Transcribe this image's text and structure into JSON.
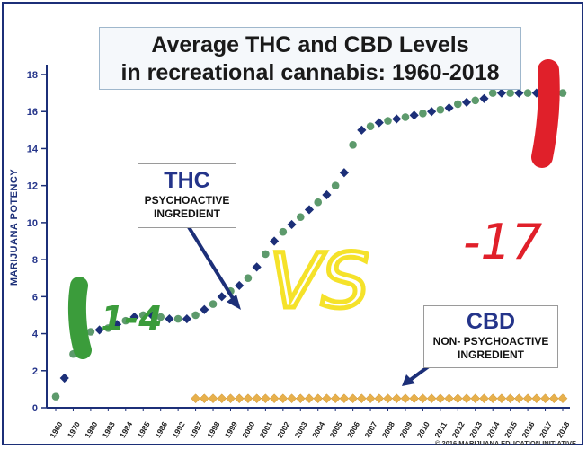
{
  "chart_data": {
    "type": "scatter",
    "title_line1": "Average THC and CBD Levels",
    "title_line2": "in recreational cannabis: 1960-2018",
    "ylabel": "MARIJUANA POTENCY",
    "xlabel": "",
    "ylim": [
      0,
      18
    ],
    "y_ticks": [
      "0",
      "2",
      "4",
      "6",
      "8",
      "10",
      "12",
      "14",
      "16",
      "18"
    ],
    "grid": false,
    "categories": [
      "1960",
      "1970",
      "1980",
      "1983",
      "1984",
      "1985",
      "1986",
      "1992",
      "1997",
      "1998",
      "1999",
      "2000",
      "2001",
      "2002",
      "2003",
      "2004",
      "2005",
      "2006",
      "2007",
      "2008",
      "2009",
      "2010",
      "2011",
      "2012",
      "2013",
      "2014",
      "2015",
      "2016",
      "2017",
      "2018"
    ],
    "series": [
      {
        "name": "THC",
        "x": [
          0,
          0.5,
          1,
          1.5,
          2,
          2.5,
          3,
          3.5,
          4,
          4.5,
          5,
          5.5,
          6,
          6.5,
          7,
          7.5,
          8,
          8.5,
          9,
          9.5,
          10,
          10.5,
          11,
          11.5,
          12,
          12.5,
          13,
          13.5,
          14,
          14.5,
          15,
          15.5,
          16,
          16.5,
          17,
          17.5,
          18,
          18.5,
          19,
          19.5,
          20,
          20.5,
          21,
          21.5,
          22,
          22.5,
          23,
          23.5,
          24,
          24.5,
          25,
          25.5,
          26,
          26.5,
          27,
          27.5,
          28,
          28.5,
          29
        ],
        "values": [
          0.6,
          1.6,
          2.9,
          3.8,
          4.1,
          4.2,
          4.3,
          4.5,
          4.7,
          4.9,
          5.0,
          5.0,
          4.9,
          4.8,
          4.8,
          4.8,
          5.0,
          5.3,
          5.6,
          6.0,
          6.3,
          6.6,
          7.0,
          7.6,
          8.3,
          9.0,
          9.5,
          9.9,
          10.3,
          10.7,
          11.1,
          11.5,
          12.0,
          12.7,
          14.2,
          15.0,
          15.2,
          15.4,
          15.5,
          15.6,
          15.7,
          15.8,
          15.9,
          16.0,
          16.1,
          16.2,
          16.4,
          16.5,
          16.6,
          16.7,
          17.0,
          17.0,
          17.0,
          17.0,
          17.0,
          17.0,
          17.0,
          17.0,
          17.0
        ]
      },
      {
        "name": "CBD",
        "x_start_index": 8,
        "x_end_index": 29,
        "value": 0.5
      }
    ]
  },
  "annotations": {
    "thc": {
      "title": "THC",
      "line1": "PSYCHOACTIVE",
      "line2": "INGREDIENT"
    },
    "cbd": {
      "title": "CBD",
      "line1": "NON- PSYCHOACTIVE",
      "line2": "INGREDIENT"
    },
    "handwritten": {
      "early": "1-4",
      "versus": "VS",
      "latest": "-17"
    }
  },
  "colors": {
    "thc_dark": "#1c2f78",
    "thc_green": "#5d9a6c",
    "cbd": "#e7b04c",
    "axis": "#1c2f78",
    "marker_green": "#3b9c3b",
    "marker_yellow": "#f5e22a",
    "marker_red": "#e0202a"
  },
  "copyright": "© 2016 MARIJUANA EDUCATION INITIATIVE"
}
